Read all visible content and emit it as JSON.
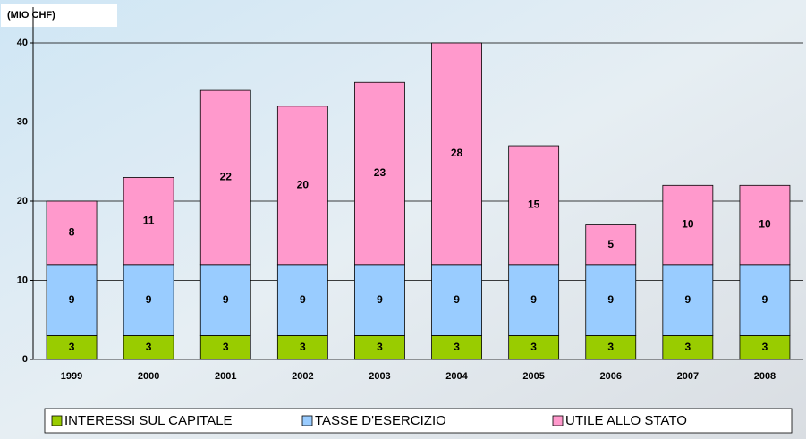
{
  "chart_data": {
    "type": "stacked_bar",
    "title": "(MIO CHF)",
    "categories": [
      "1999",
      "2000",
      "2001",
      "2002",
      "2003",
      "2004",
      "2005",
      "2006",
      "2007",
      "2008"
    ],
    "series": [
      {
        "name": "INTERESSI SUL CAPITALE",
        "color": "#99cc00",
        "values": [
          3,
          3,
          3,
          3,
          3,
          3,
          3,
          3,
          3,
          3
        ]
      },
      {
        "name": "TASSE D'ESERCIZIO",
        "color": "#99ccff",
        "values": [
          9,
          9,
          9,
          9,
          9,
          9,
          9,
          9,
          9,
          9
        ]
      },
      {
        "name": "UTILE ALLO STATO",
        "color": "#ff99cc",
        "values": [
          8,
          11,
          22,
          20,
          23,
          28,
          15,
          5,
          10,
          10
        ]
      }
    ],
    "ylim": [
      0,
      40
    ],
    "yticks": [
      0,
      10,
      20,
      30,
      40
    ],
    "grid": true,
    "legend": "bottom"
  }
}
